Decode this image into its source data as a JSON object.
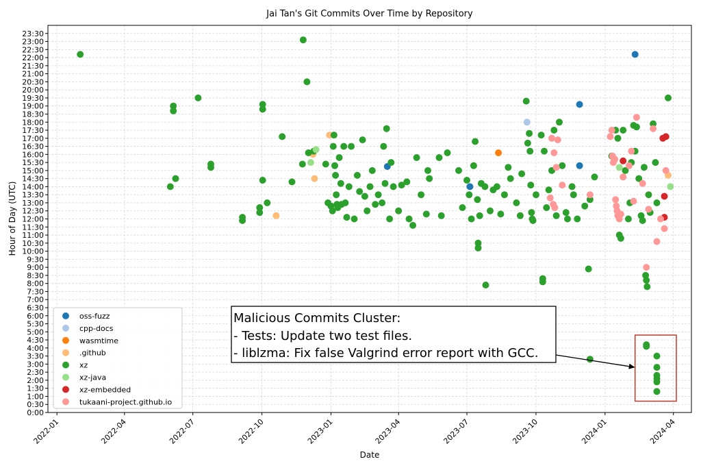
{
  "chart_data": {
    "type": "scatter",
    "title": "Jai Tan's Git Commits Over Time by Repository",
    "xlabel": "Date",
    "ylabel": "Hour of Day (UTC)",
    "xlim": [
      "2021-12-20",
      "2024-04-25"
    ],
    "ylim": [
      0,
      24
    ],
    "grid": true,
    "legend_position": "lower-left",
    "x_ticks": [
      "2022-01",
      "2022-04",
      "2022-07",
      "2022-10",
      "2023-01",
      "2023-04",
      "2023-07",
      "2023-10",
      "2024-01",
      "2024-04"
    ],
    "y_ticks": [
      "0:00",
      "0:30",
      "1:00",
      "1:30",
      "2:00",
      "2:30",
      "3:00",
      "3:30",
      "4:00",
      "4:30",
      "5:00",
      "5:30",
      "6:00",
      "6:30",
      "7:00",
      "7:30",
      "8:00",
      "8:30",
      "9:00",
      "9:30",
      "10:00",
      "10:30",
      "11:00",
      "11:30",
      "12:00",
      "12:30",
      "13:00",
      "13:30",
      "14:00",
      "14:30",
      "15:00",
      "15:30",
      "16:00",
      "16:30",
      "17:00",
      "17:30",
      "18:00",
      "18:30",
      "19:00",
      "19:30",
      "20:00",
      "20:30",
      "21:00",
      "21:30",
      "22:00",
      "22:30",
      "23:00",
      "23:30"
    ],
    "series": [
      {
        "name": "oss-fuzz",
        "color": "#1f77b4",
        "points": [
          [
            "2023-03-17",
            15.25
          ],
          [
            "2023-07-05",
            14.0
          ],
          [
            "2023-11-28",
            19.1
          ],
          [
            "2023-11-28",
            15.3
          ],
          [
            "2024-02-10",
            22.2
          ]
        ]
      },
      {
        "name": "cpp-docs",
        "color": "#aec7e8",
        "points": [
          [
            "2023-09-19",
            18.0
          ]
        ]
      },
      {
        "name": "wasmtime",
        "color": "#ff7f0e",
        "points": [
          [
            "2023-08-12",
            16.1
          ]
        ]
      },
      {
        "name": ".github",
        "color": "#ffbb78",
        "points": [
          [
            "2022-10-20",
            12.2
          ],
          [
            "2022-12-08",
            16.0
          ],
          [
            "2022-12-10",
            14.5
          ],
          [
            "2022-12-30",
            17.2
          ],
          [
            "2024-03-25",
            14.7
          ]
        ]
      },
      {
        "name": "xz",
        "color": "#2ca02c",
        "points": [
          [
            "2022-02-01",
            22.2
          ],
          [
            "2022-06-01",
            14.0
          ],
          [
            "2022-06-05",
            19.0
          ],
          [
            "2022-06-05",
            18.7
          ],
          [
            "2022-06-08",
            14.5
          ],
          [
            "2022-07-08",
            19.5
          ],
          [
            "2022-07-25",
            15.4
          ],
          [
            "2022-07-25",
            15.2
          ],
          [
            "2022-09-05",
            12.1
          ],
          [
            "2022-09-05",
            11.9
          ],
          [
            "2022-09-28",
            12.7
          ],
          [
            "2022-09-28",
            12.4
          ],
          [
            "2022-10-02",
            14.4
          ],
          [
            "2022-10-02",
            19.1
          ],
          [
            "2022-10-02",
            18.8
          ],
          [
            "2022-10-08",
            13.0
          ],
          [
            "2022-10-28",
            17.1
          ],
          [
            "2022-11-10",
            14.3
          ],
          [
            "2022-11-24",
            15.4
          ],
          [
            "2022-11-25",
            23.1
          ],
          [
            "2022-11-30",
            20.5
          ],
          [
            "2022-12-02",
            16.1
          ],
          [
            "2022-12-09",
            16.2
          ],
          [
            "2022-12-25",
            15.4
          ],
          [
            "2022-12-28",
            13.0
          ],
          [
            "2023-01-01",
            12.8
          ],
          [
            "2023-01-03",
            12.5
          ],
          [
            "2023-01-04",
            16.5
          ],
          [
            "2023-01-05",
            17.2
          ],
          [
            "2023-01-06",
            15.3
          ],
          [
            "2023-01-07",
            14.7
          ],
          [
            "2023-01-08",
            13.5
          ],
          [
            "2023-01-09",
            12.9
          ],
          [
            "2023-01-10",
            12.7
          ],
          [
            "2023-01-12",
            15.8
          ],
          [
            "2023-01-14",
            14.2
          ],
          [
            "2023-01-15",
            12.9
          ],
          [
            "2023-01-18",
            16.5
          ],
          [
            "2023-01-20",
            13.0
          ],
          [
            "2023-01-22",
            12.1
          ],
          [
            "2023-01-25",
            14.0
          ],
          [
            "2023-01-28",
            16.5
          ],
          [
            "2023-02-01",
            12.0
          ],
          [
            "2023-02-05",
            14.7
          ],
          [
            "2023-02-08",
            13.7
          ],
          [
            "2023-02-12",
            16.9
          ],
          [
            "2023-02-15",
            13.4
          ],
          [
            "2023-02-18",
            12.5
          ],
          [
            "2023-02-22",
            14.0
          ],
          [
            "2023-02-25",
            15.0
          ],
          [
            "2023-03-01",
            12.9
          ],
          [
            "2023-03-05",
            13.5
          ],
          [
            "2023-03-10",
            13.0
          ],
          [
            "2023-03-12",
            16.5
          ],
          [
            "2023-03-14",
            14.2
          ],
          [
            "2023-03-16",
            17.6
          ],
          [
            "2023-03-20",
            12.0
          ],
          [
            "2023-03-22",
            15.5
          ],
          [
            "2023-03-25",
            14.0
          ],
          [
            "2023-04-01",
            12.5
          ],
          [
            "2023-04-05",
            14.1
          ],
          [
            "2023-04-12",
            14.3
          ],
          [
            "2023-04-15",
            12.0
          ],
          [
            "2023-04-20",
            11.6
          ],
          [
            "2023-04-25",
            15.8
          ],
          [
            "2023-05-01",
            13.5
          ],
          [
            "2023-05-08",
            12.3
          ],
          [
            "2023-05-10",
            15.0
          ],
          [
            "2023-05-12",
            14.5
          ],
          [
            "2023-05-25",
            15.8
          ],
          [
            "2023-05-28",
            12.2
          ],
          [
            "2023-06-05",
            16.1
          ],
          [
            "2023-06-20",
            15.0
          ],
          [
            "2023-06-25",
            12.7
          ],
          [
            "2023-07-01",
            14.4
          ],
          [
            "2023-07-04",
            13.5
          ],
          [
            "2023-07-07",
            12.0
          ],
          [
            "2023-07-10",
            15.3
          ],
          [
            "2023-07-12",
            16.8
          ],
          [
            "2023-07-15",
            13.2
          ],
          [
            "2023-07-16",
            10.5
          ],
          [
            "2023-07-16",
            10.2
          ],
          [
            "2023-07-18",
            12.2
          ],
          [
            "2023-07-20",
            14.2
          ],
          [
            "2023-07-25",
            14.0
          ],
          [
            "2023-07-26",
            7.9
          ],
          [
            "2023-08-01",
            12.5
          ],
          [
            "2023-08-05",
            13.8
          ],
          [
            "2023-08-10",
            14.0
          ],
          [
            "2023-08-15",
            12.3
          ],
          [
            "2023-08-20",
            13.5
          ],
          [
            "2023-08-25",
            15.2
          ],
          [
            "2023-08-28",
            14.5
          ],
          [
            "2023-09-05",
            13.0
          ],
          [
            "2023-09-10",
            12.2
          ],
          [
            "2023-09-12",
            14.8
          ],
          [
            "2023-09-18",
            19.3
          ],
          [
            "2023-09-20",
            16.7
          ],
          [
            "2023-09-22",
            17.3
          ],
          [
            "2023-09-23",
            16.2
          ],
          [
            "2023-09-24",
            14.1
          ],
          [
            "2023-09-25",
            12.4
          ],
          [
            "2023-09-26",
            12.0
          ],
          [
            "2023-09-27",
            11.9
          ],
          [
            "2023-10-01",
            13.5
          ],
          [
            "2023-10-08",
            17.2
          ],
          [
            "2023-10-10",
            8.3
          ],
          [
            "2023-10-10",
            8.1
          ],
          [
            "2023-10-12",
            16.2
          ],
          [
            "2023-10-15",
            12.7
          ],
          [
            "2023-10-18",
            13.8
          ],
          [
            "2023-10-22",
            15.0
          ],
          [
            "2023-10-25",
            17.5
          ],
          [
            "2023-10-28",
            12.2
          ],
          [
            "2023-11-01",
            18.0
          ],
          [
            "2023-11-05",
            15.3
          ],
          [
            "2023-11-10",
            12.4
          ],
          [
            "2023-11-12",
            12.0
          ],
          [
            "2023-11-18",
            14.0
          ],
          [
            "2023-11-20",
            13.5
          ],
          [
            "2023-11-25",
            12.0
          ],
          [
            "2023-12-05",
            12.8
          ],
          [
            "2023-12-10",
            8.9
          ],
          [
            "2023-12-12",
            13.2
          ],
          [
            "2023-12-18",
            14.6
          ],
          [
            "2023-12-12",
            3.3
          ],
          [
            "2024-01-10",
            15.9
          ],
          [
            "2024-01-15",
            17.5
          ],
          [
            "2024-01-18",
            17.0
          ],
          [
            "2024-01-20",
            11.0
          ],
          [
            "2024-01-22",
            10.8
          ],
          [
            "2024-01-25",
            17.5
          ],
          [
            "2024-01-28",
            15.0
          ],
          [
            "2024-02-01",
            12.0
          ],
          [
            "2024-02-03",
            13.0
          ],
          [
            "2024-02-05",
            15.5
          ],
          [
            "2024-02-08",
            17.8
          ],
          [
            "2024-02-10",
            16.2
          ],
          [
            "2024-02-12",
            17.7
          ],
          [
            "2024-02-15",
            14.5
          ],
          [
            "2024-02-18",
            12.2
          ],
          [
            "2024-02-20",
            11.9
          ],
          [
            "2024-02-22",
            15.2
          ],
          [
            "2024-02-24",
            8.5
          ],
          [
            "2024-02-25",
            8.2
          ],
          [
            "2024-02-26",
            7.8
          ],
          [
            "2024-02-28",
            13.5
          ],
          [
            "2024-03-01",
            12.4
          ],
          [
            "2024-03-05",
            17.9
          ],
          [
            "2024-03-08",
            15.5
          ],
          [
            "2024-03-10",
            13.0
          ],
          [
            "2024-03-25",
            19.5
          ],
          [
            "2024-02-25",
            4.2
          ],
          [
            "2024-02-25",
            4.1
          ],
          [
            "2024-03-10",
            3.5
          ],
          [
            "2024-03-10",
            2.8
          ],
          [
            "2024-03-10",
            2.3
          ],
          [
            "2024-03-10",
            2.1
          ],
          [
            "2024-03-10",
            1.9
          ],
          [
            "2024-03-10",
            1.3
          ]
        ]
      },
      {
        "name": "xz-java",
        "color": "#98df8a",
        "points": [
          [
            "2022-12-12",
            16.3
          ],
          [
            "2022-12-05",
            15.5
          ],
          [
            "2024-01-20",
            15.2
          ],
          [
            "2024-03-28",
            14.0
          ]
        ]
      },
      {
        "name": "xz-embedded",
        "color": "#d62728",
        "points": [
          [
            "2024-01-25",
            15.6
          ],
          [
            "2024-03-18",
            17.0
          ],
          [
            "2024-03-22",
            17.1
          ],
          [
            "2024-03-20",
            13.4
          ],
          [
            "2024-03-20",
            12.1
          ]
        ]
      },
      {
        "name": "tukaani-project.github.io",
        "color": "#ff9896",
        "points": [
          [
            "2023-10-22",
            17.0
          ],
          [
            "2023-10-25",
            16.1
          ],
          [
            "2023-10-28",
            15.2
          ],
          [
            "2023-10-30",
            16.9
          ],
          [
            "2023-10-20",
            13.3
          ],
          [
            "2023-10-24",
            12.9
          ],
          [
            "2023-10-26",
            12.7
          ],
          [
            "2023-11-05",
            14.1
          ],
          [
            "2023-12-12",
            13.5
          ],
          [
            "2024-01-08",
            17.1
          ],
          [
            "2024-01-10",
            17.5
          ],
          [
            "2024-01-11",
            15.9
          ],
          [
            "2024-01-12",
            15.5
          ],
          [
            "2024-01-14",
            15.7
          ],
          [
            "2024-01-15",
            13.2
          ],
          [
            "2024-01-16",
            12.8
          ],
          [
            "2024-01-17",
            12.5
          ],
          [
            "2024-01-18",
            12.2
          ],
          [
            "2024-01-20",
            12.0
          ],
          [
            "2024-01-22",
            12.3
          ],
          [
            "2024-01-25",
            14.6
          ],
          [
            "2024-02-02",
            15.3
          ],
          [
            "2024-02-05",
            16.2
          ],
          [
            "2024-02-08",
            13.1
          ],
          [
            "2024-02-12",
            18.3
          ],
          [
            "2024-02-20",
            14.2
          ],
          [
            "2024-02-25",
            9.0
          ],
          [
            "2024-02-28",
            12.6
          ],
          [
            "2024-03-05",
            17.6
          ],
          [
            "2024-03-10",
            10.6
          ],
          [
            "2024-03-15",
            12.0
          ],
          [
            "2024-03-20",
            11.4
          ],
          [
            "2024-03-22",
            15.0
          ]
        ]
      }
    ],
    "annotation": {
      "title": "Malicious Commits Cluster:",
      "lines": [
        "- Tests: Update two test files.",
        "- liblzma: Fix false Valgrind error report with GCC."
      ],
      "box_x_range": [
        "2024-02-10",
        "2024-04-05"
      ],
      "box_y_range": [
        0.7,
        4.8
      ],
      "arrow_target": [
        "2024-02-10",
        2.8
      ]
    }
  },
  "colors": {
    "grid": "#d9d9d9",
    "annotation_box_edge": "#c0392b",
    "annotation_text_box_edge": "#000000"
  }
}
